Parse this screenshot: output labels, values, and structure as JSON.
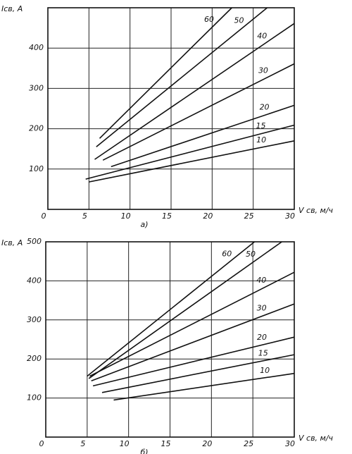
{
  "chart_data": [
    {
      "type": "line",
      "caption": "а)",
      "ylabel": "Iсв, А",
      "xlabel": "V св, м/ч",
      "xlim": [
        0,
        30
      ],
      "xticks": [
        0,
        5,
        10,
        15,
        20,
        25,
        30
      ],
      "ylim": [
        0,
        500
      ],
      "yticks": [
        100,
        200,
        300,
        400
      ],
      "grid": true,
      "color": "#111",
      "series": [
        {
          "name": "10",
          "x": [
            5,
            30
          ],
          "values": [
            68,
            170
          ]
        },
        {
          "name": "15",
          "x": [
            4.6,
            30
          ],
          "values": [
            75,
            209
          ]
        },
        {
          "name": "20",
          "x": [
            7.7,
            30
          ],
          "values": [
            106,
            258
          ]
        },
        {
          "name": "30",
          "x": [
            6.7,
            30
          ],
          "values": [
            122,
            361
          ]
        },
        {
          "name": "40",
          "x": [
            5.7,
            30
          ],
          "values": [
            124,
            461
          ]
        },
        {
          "name": "50",
          "x": [
            5.9,
            26.7
          ],
          "values": [
            155,
            500
          ]
        },
        {
          "name": "60",
          "x": [
            6.3,
            22.4
          ],
          "values": [
            176,
            500
          ]
        }
      ]
    },
    {
      "type": "line",
      "caption": "б)",
      "ylabel": "Iсв, А",
      "xlabel": "V св, м/ч",
      "xlim": [
        0,
        30
      ],
      "xticks": [
        0,
        5,
        10,
        15,
        20,
        25,
        30
      ],
      "ylim": [
        0,
        500
      ],
      "yticks": [
        100,
        200,
        300,
        400,
        500
      ],
      "grid": true,
      "color": "#111",
      "series": [
        {
          "name": "10",
          "x": [
            8.2,
            30
          ],
          "values": [
            95,
            163
          ]
        },
        {
          "name": "15",
          "x": [
            6.8,
            30
          ],
          "values": [
            114,
            211
          ]
        },
        {
          "name": "20",
          "x": [
            5.7,
            30
          ],
          "values": [
            131,
            256
          ]
        },
        {
          "name": "30",
          "x": [
            5.5,
            30
          ],
          "values": [
            144,
            341
          ]
        },
        {
          "name": "40",
          "x": [
            5.3,
            30
          ],
          "values": [
            156,
            422
          ]
        },
        {
          "name": "50",
          "x": [
            5.2,
            28.5
          ],
          "values": [
            150,
            500
          ]
        },
        {
          "name": "60",
          "x": [
            5,
            25.2
          ],
          "values": [
            156,
            500
          ]
        }
      ]
    }
  ]
}
